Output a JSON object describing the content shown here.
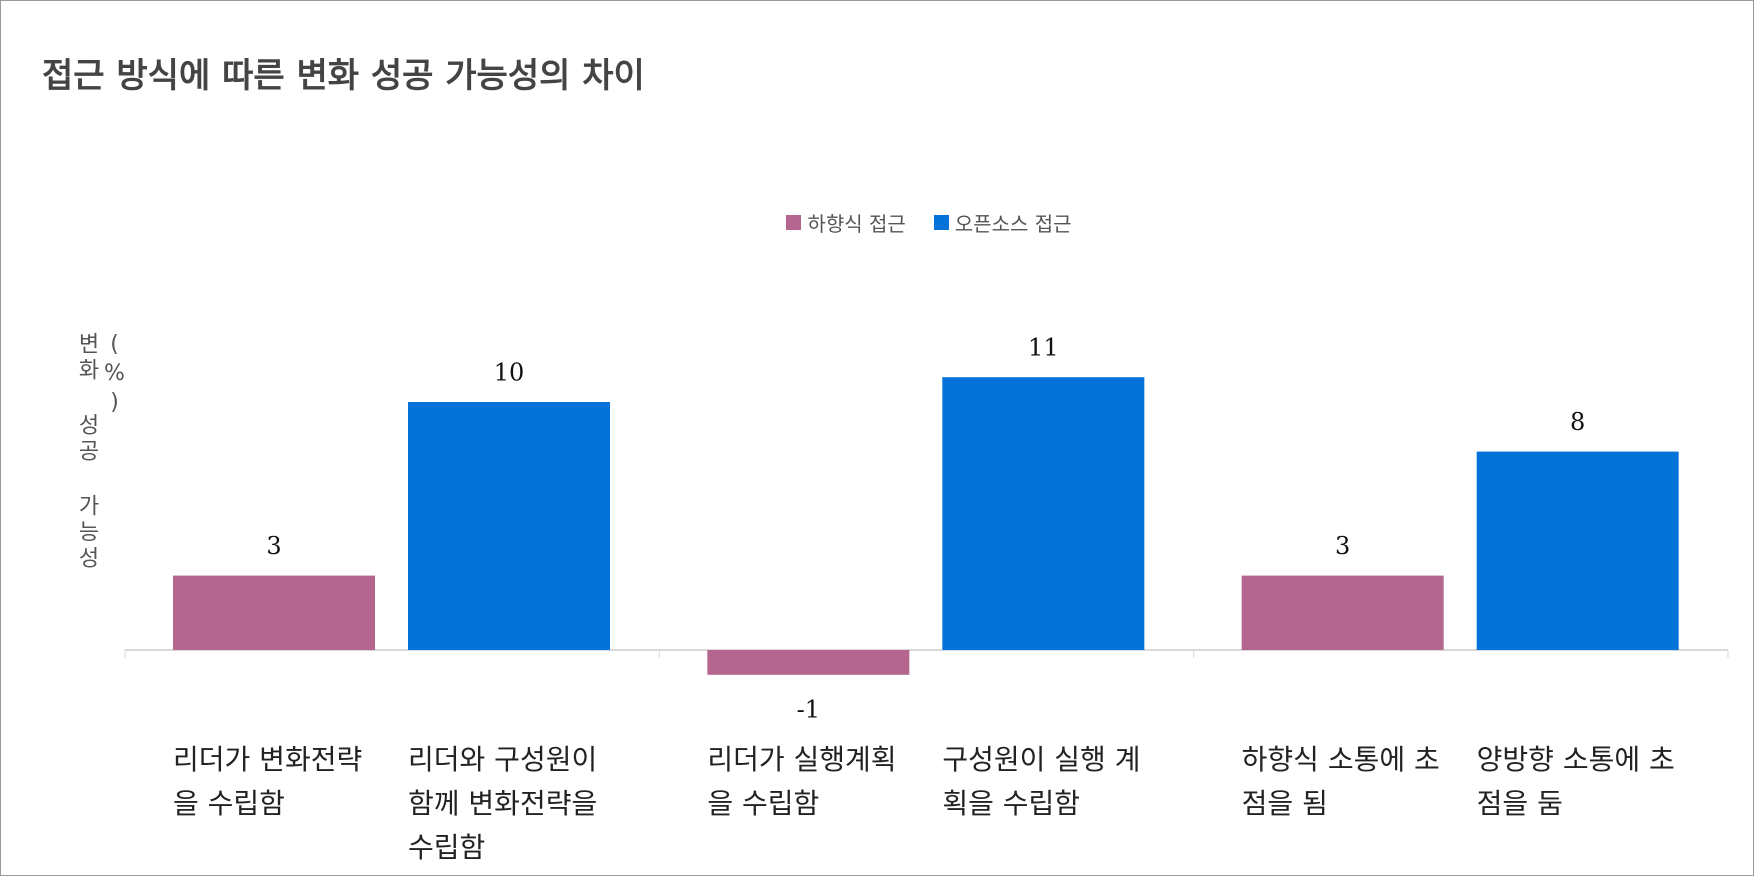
{
  "chart_data": {
    "type": "bar",
    "title": "접근 방식에 따른 변화 성공 가능성의 차이",
    "y_label": "변화 성공 가능성(%)",
    "categories": [
      null,
      null,
      null
    ],
    "series": [
      {
        "name": "하향식 접근",
        "color": "#b4668f",
        "values": [
          3,
          -1,
          3
        ],
        "labels": [
          "리더가 변화전략을 수립함",
          "리더가 실행계획을 수립함",
          "하향식 소통에 초점을 됨"
        ]
      },
      {
        "name": "오픈소스 접근",
        "color": "#0373d9",
        "values": [
          10,
          11,
          8
        ],
        "labels": [
          "리더와 구성원이 함께 변화전략을 수립함",
          "구성원이 실행 계획을 수립함",
          "양방향 소통에 초점을 둠"
        ]
      }
    ],
    "ylim": [
      -2,
      12
    ]
  }
}
